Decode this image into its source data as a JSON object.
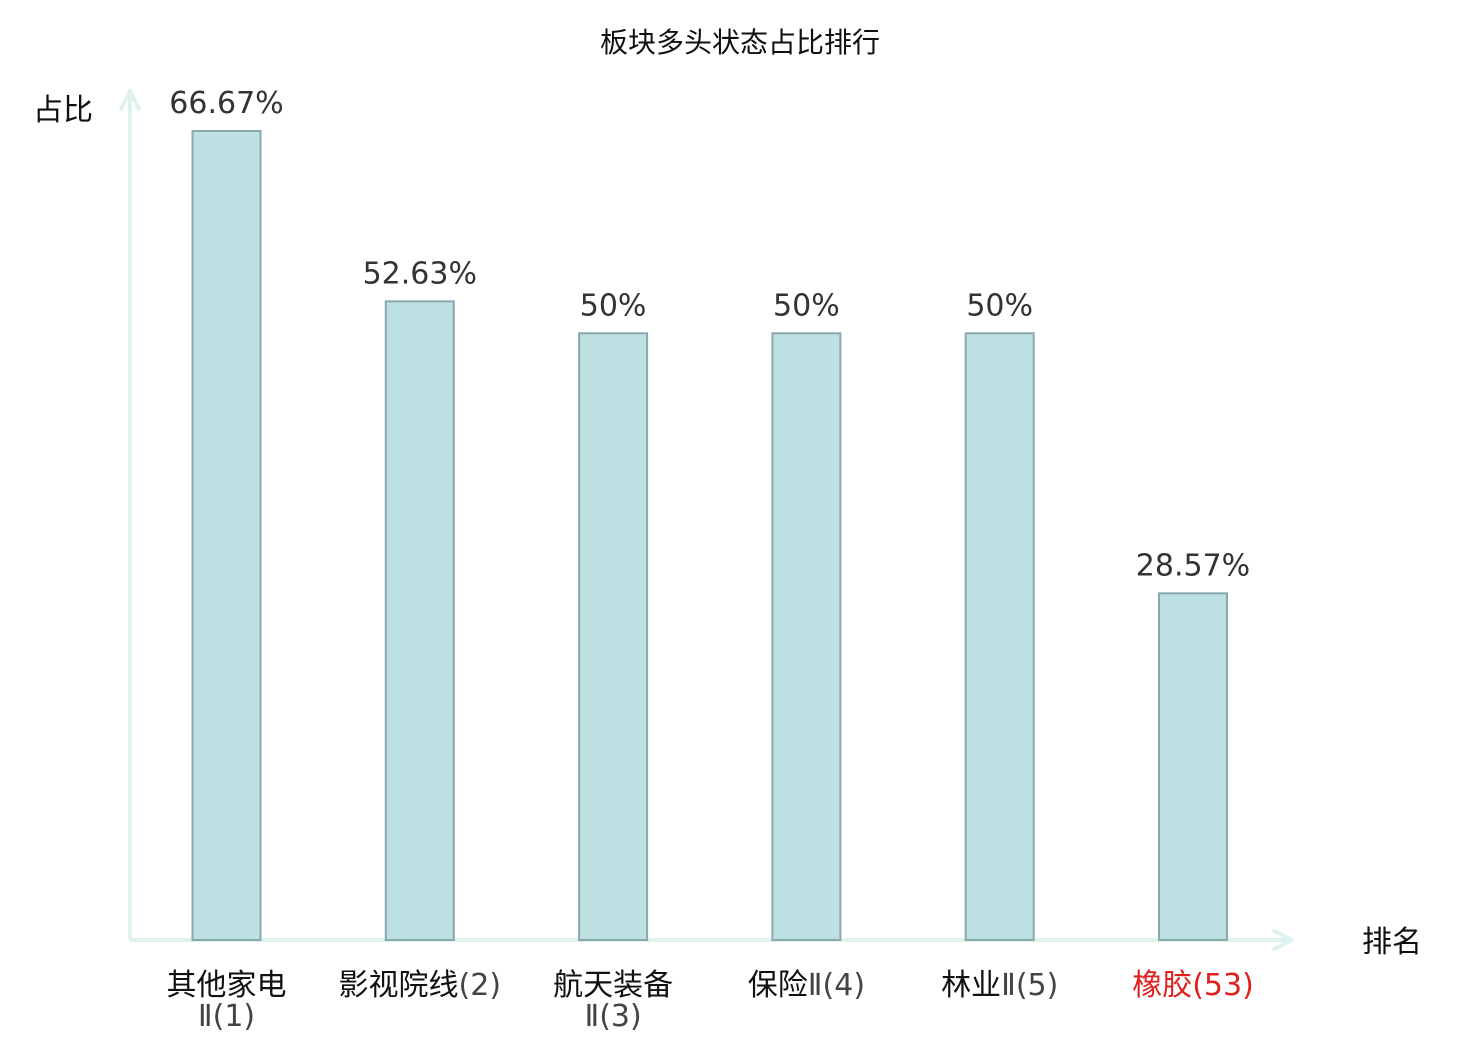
{
  "chart_data": {
    "type": "bar",
    "title": "板块多头状态占比排行",
    "ylabel": "占比",
    "xlabel": "排名",
    "ylim": [
      0,
      70
    ],
    "grid": false,
    "categories": [
      {
        "name": "其他家电",
        "rank": "Ⅱ(1)",
        "highlight": false
      },
      {
        "name": "影视院线",
        "rank": "(2)",
        "highlight": false
      },
      {
        "name": "航天装备",
        "rank": "Ⅱ(3)",
        "highlight": false
      },
      {
        "name": "保险",
        "rank": "Ⅱ(4)",
        "highlight": false
      },
      {
        "name": "林业",
        "rank": "Ⅱ(5)",
        "highlight": false
      },
      {
        "name": "橡胶",
        "rank": "(53)",
        "highlight": true
      }
    ],
    "values": [
      66.67,
      52.63,
      50,
      50,
      50,
      28.57
    ],
    "value_labels": [
      "66.67%",
      "52.63%",
      "50%",
      "50%",
      "50%",
      "28.57%"
    ],
    "colors": {
      "bar_fill": "#bde0e3",
      "bar_stroke": "#8aa9ad",
      "axis": "#e0f2f0",
      "label_text": "#111111",
      "rank_text": "#444444",
      "highlight_text": "#e0201c",
      "value_text": "#333333"
    }
  }
}
